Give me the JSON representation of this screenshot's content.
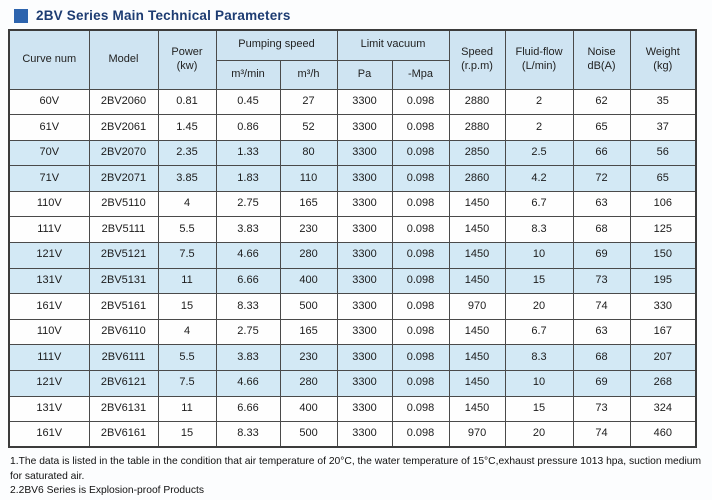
{
  "title": "2BV Series Main Technical Parameters",
  "colors": {
    "title_text": "#1d3c72",
    "title_square": "#2d64ae",
    "header_bg": "#cfe4f2",
    "shaded_row_bg": "#d3e9f5",
    "table_border": "#4a4a4a"
  },
  "table": {
    "header": {
      "curve_num": "Curve num",
      "model": "Model",
      "power": "Power",
      "power_unit": "(kw)",
      "pumping_speed": "Pumping speed",
      "limit_vacuum": "Limit vacuum",
      "speed": "Speed",
      "speed_unit": "(r.p.m)",
      "fluid_flow": "Fluid-flow",
      "fluid_flow_unit": "(L/min)",
      "noise": "Noise",
      "noise_unit": "dB(A)",
      "weight": "Weight",
      "weight_unit": "(kg)",
      "sub_m3min": "m³/min",
      "sub_m3h": "m³/h",
      "sub_pa": "Pa",
      "sub_mpa": "-Mpa"
    },
    "rows": [
      [
        "60V",
        "2BV2060",
        "0.81",
        "0.45",
        "27",
        "3300",
        "0.098",
        "2880",
        "2",
        "62",
        "35"
      ],
      [
        "61V",
        "2BV2061",
        "1.45",
        "0.86",
        "52",
        "3300",
        "0.098",
        "2880",
        "2",
        "65",
        "37"
      ],
      [
        "70V",
        "2BV2070",
        "2.35",
        "1.33",
        "80",
        "3300",
        "0.098",
        "2850",
        "2.5",
        "66",
        "56"
      ],
      [
        "71V",
        "2BV2071",
        "3.85",
        "1.83",
        "110",
        "3300",
        "0.098",
        "2860",
        "4.2",
        "72",
        "65"
      ],
      [
        "110V",
        "2BV5110",
        "4",
        "2.75",
        "165",
        "3300",
        "0.098",
        "1450",
        "6.7",
        "63",
        "106"
      ],
      [
        "111V",
        "2BV5111",
        "5.5",
        "3.83",
        "230",
        "3300",
        "0.098",
        "1450",
        "8.3",
        "68",
        "125"
      ],
      [
        "121V",
        "2BV5121",
        "7.5",
        "4.66",
        "280",
        "3300",
        "0.098",
        "1450",
        "10",
        "69",
        "150"
      ],
      [
        "131V",
        "2BV5131",
        "11",
        "6.66",
        "400",
        "3300",
        "0.098",
        "1450",
        "15",
        "73",
        "195"
      ],
      [
        "161V",
        "2BV5161",
        "15",
        "8.33",
        "500",
        "3300",
        "0.098",
        "970",
        "20",
        "74",
        "330"
      ],
      [
        "110V",
        "2BV6110",
        "4",
        "2.75",
        "165",
        "3300",
        "0.098",
        "1450",
        "6.7",
        "63",
        "167"
      ],
      [
        "111V",
        "2BV6111",
        "5.5",
        "3.83",
        "230",
        "3300",
        "0.098",
        "1450",
        "8.3",
        "68",
        "207"
      ],
      [
        "121V",
        "2BV6121",
        "7.5",
        "4.66",
        "280",
        "3300",
        "0.098",
        "1450",
        "10",
        "69",
        "268"
      ],
      [
        "131V",
        "2BV6131",
        "11",
        "6.66",
        "400",
        "3300",
        "0.098",
        "1450",
        "15",
        "73",
        "324"
      ],
      [
        "161V",
        "2BV6161",
        "15",
        "8.33",
        "500",
        "3300",
        "0.098",
        "970",
        "20",
        "74",
        "460"
      ]
    ],
    "shaded_row_indexes": [
      2,
      3,
      6,
      7,
      10,
      11
    ]
  },
  "notes": {
    "note1": "1.The data is listed in the table in the condition that air temperature of 20°C, the water temperature of 15°C,exhaust pressure 1013 hpa, suction medium for saturated air.",
    "note2": "2.2BV6 Series is Explosion-proof Products"
  }
}
